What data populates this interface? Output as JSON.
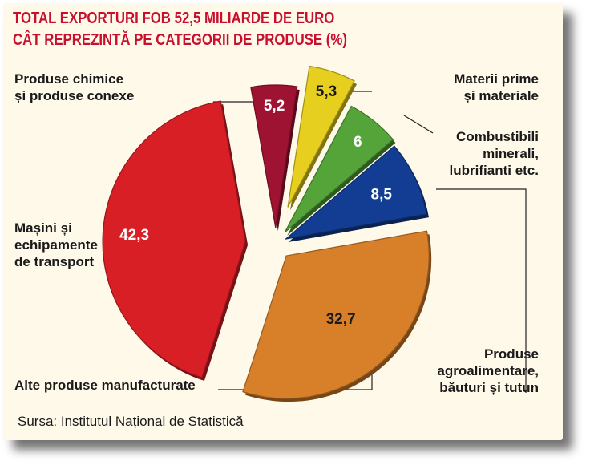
{
  "title_line1": "TOTAL EXPORTURI FOB 52,5 MILIARDE DE EURO",
  "title_line2": "CÂT REPREZINTĂ PE CATEGORII DE PRODUSE (%)",
  "source": "Sursa: Institutul Național de Statistică",
  "chart_data": {
    "type": "pie",
    "title": "TOTAL EXPORTURI FOB 52,5 MILIARDE DE EURO CÂT REPREZINTĂ PE CATEGORII DE PRODUSE (%)",
    "slices": [
      {
        "value": 5.2,
        "value_label": "5,2",
        "color": "#9e1232"
      },
      {
        "value": 5.3,
        "value_label": "5,3",
        "color": "#e6cf1e"
      },
      {
        "value": 6,
        "value_label": "6",
        "color": "#54a43a"
      },
      {
        "value": 8.5,
        "value_label": "8,5",
        "color": "#123d92"
      },
      {
        "value": 32.7,
        "value_label": "32,7",
        "color": "#d87f2a"
      },
      {
        "value": 42.3,
        "value_label": "42,3",
        "color": "#d81f26"
      }
    ],
    "labels": [
      {
        "text": "Produse chimice\nși produse conexe"
      },
      {
        "text": "Materii prime\nși materiale"
      },
      {
        "text": "Combustibili\nminerali,\nlubrifianti etc."
      },
      {
        "text": "Mașini și\nechipamente\nde transport"
      },
      {
        "text": "Produse\nagroalimentare,\nbăuturi și tutun"
      },
      {
        "text": "Alte produse manufacturate"
      }
    ],
    "legend": "none"
  }
}
